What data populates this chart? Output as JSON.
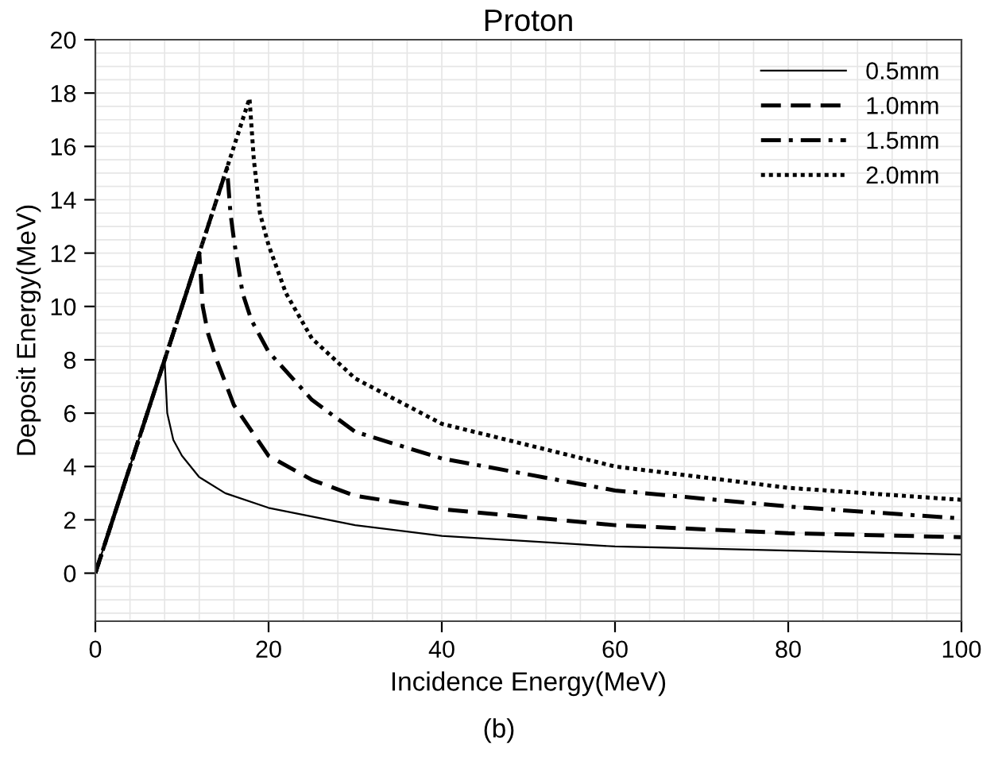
{
  "chart_data": {
    "type": "line",
    "title": "Proton",
    "xlabel": "Incidence Energy(MeV)",
    "ylabel": "Deposit Energy(MeV)",
    "annotations": [
      "(b)"
    ],
    "series": [
      {
        "name": "0.5mm",
        "color": "#000000",
        "line_style": "solid",
        "x": [
          0,
          8,
          8.3,
          9,
          10,
          12,
          15,
          20,
          30,
          40,
          60,
          80,
          100
        ],
        "values": [
          0,
          8,
          6,
          5,
          4.4,
          3.6,
          3.0,
          2.45,
          1.8,
          1.4,
          1.0,
          0.85,
          0.7
        ]
      },
      {
        "name": "1.0mm",
        "color": "#000000",
        "line_style": "dashed",
        "x": [
          0,
          12,
          12.4,
          13,
          14,
          16,
          20,
          25,
          30,
          40,
          60,
          80,
          100
        ],
        "values": [
          0,
          12,
          10,
          9,
          8,
          6.3,
          4.4,
          3.5,
          2.9,
          2.4,
          1.8,
          1.5,
          1.35
        ]
      },
      {
        "name": "1.5mm",
        "color": "#000000",
        "line_style": "dashdot",
        "x": [
          0,
          15.2,
          15.6,
          16,
          17,
          18,
          20,
          25,
          30,
          40,
          60,
          80,
          100
        ],
        "values": [
          0,
          15.2,
          13.5,
          12.5,
          10.5,
          9.5,
          8.3,
          6.5,
          5.3,
          4.3,
          3.1,
          2.5,
          2.05
        ]
      },
      {
        "name": "2.0mm",
        "color": "#000000",
        "line_style": "dotted",
        "x": [
          0,
          17.8,
          18.3,
          19,
          20,
          22,
          25,
          30,
          40,
          60,
          80,
          100
        ],
        "values": [
          0,
          17.8,
          15.5,
          13.5,
          12.3,
          10.5,
          8.8,
          7.3,
          5.6,
          4.0,
          3.2,
          2.75
        ]
      }
    ],
    "xlim": [
      0,
      100
    ],
    "xticks": [
      0,
      20,
      40,
      60,
      80,
      100
    ],
    "ylim": [
      -1.8,
      20
    ],
    "yticks": [
      0,
      2,
      4,
      6,
      8,
      10,
      12,
      14,
      16,
      18,
      20
    ],
    "grid": true,
    "legend": "top right"
  }
}
